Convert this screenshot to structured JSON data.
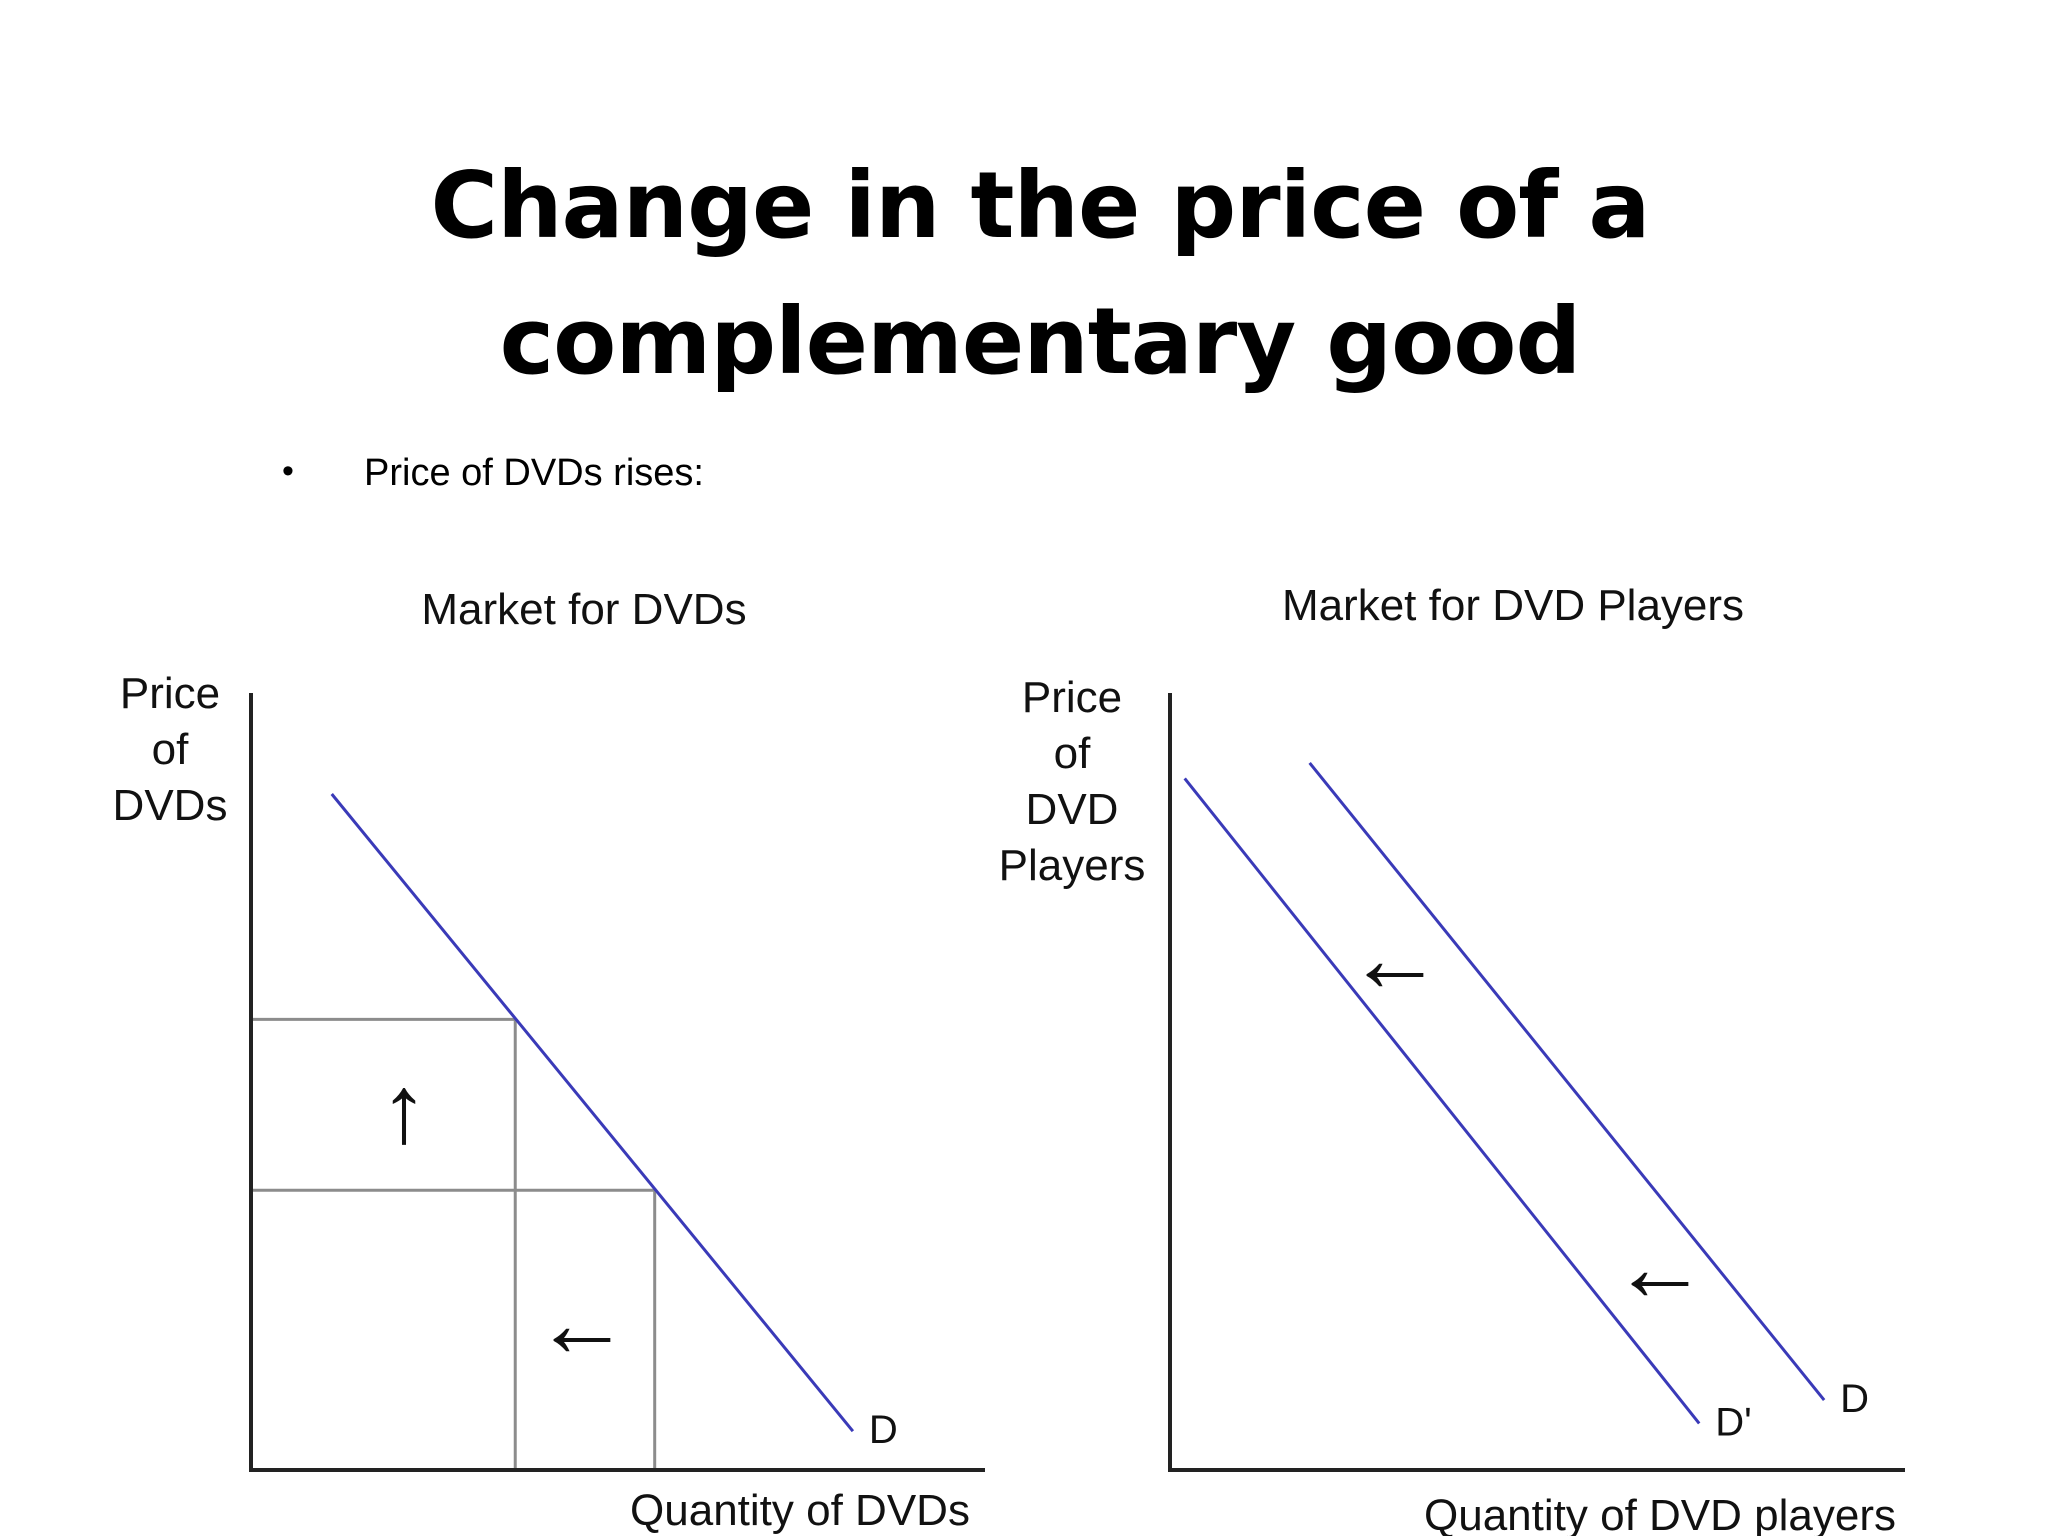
{
  "slide": {
    "title": "Change in the price of a complementary good",
    "bullet": "Price of DVDs rises:"
  },
  "colors": {
    "curve": "#3a3ab8",
    "axis": "#222222",
    "guide": "#8c8c8c"
  },
  "chart_data": [
    {
      "type": "line",
      "title": "Market for DVDs",
      "xlabel": "Quantity of DVDs",
      "ylabel": "Price of DVDs",
      "ylabel_lines": [
        "Price",
        "of",
        "DVDs"
      ],
      "xlim": [
        0,
        100
      ],
      "ylim": [
        0,
        100
      ],
      "series": [
        {
          "name": "D",
          "x": [
            11,
            82
          ],
          "y": [
            87,
            5
          ]
        }
      ],
      "points": [
        {
          "x": 36,
          "y": 58
        },
        {
          "x": 55,
          "y": 36
        }
      ],
      "annotations": [
        {
          "symbol": "↑",
          "meaning": "price rises"
        },
        {
          "symbol": "←",
          "meaning": "quantity demanded falls"
        }
      ]
    },
    {
      "type": "line",
      "title": "Market for DVD Players",
      "xlabel": "Quantity of DVD players",
      "ylabel": "Price of DVD Players",
      "ylabel_lines": [
        "Price",
        "of",
        "DVD",
        "Players"
      ],
      "xlim": [
        0,
        100
      ],
      "ylim": [
        0,
        100
      ],
      "series": [
        {
          "name": "D",
          "x": [
            19,
            89
          ],
          "y": [
            91,
            9
          ]
        },
        {
          "name": "D'",
          "x": [
            2,
            72
          ],
          "y": [
            89,
            6
          ]
        }
      ],
      "annotations": [
        {
          "symbol": "←",
          "meaning": "demand shifts left"
        },
        {
          "symbol": "←",
          "meaning": "demand shifts left"
        }
      ]
    }
  ]
}
